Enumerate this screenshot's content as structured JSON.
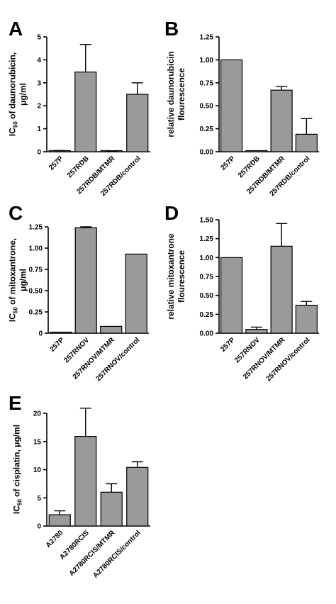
{
  "chart_data": [
    {
      "type": "bar",
      "panel_letter": "A",
      "ylabel": [
        "IC",
        "50",
        " of daunorubicin,",
        "μg/ml"
      ],
      "ylim": [
        0,
        5
      ],
      "yticks": [
        "0",
        "1",
        "2",
        "3",
        "4",
        "5"
      ],
      "categories": [
        "257P",
        "257RDB",
        "257RDB/MTMR",
        "257RDB/control"
      ],
      "values": [
        0.03,
        3.47,
        0.02,
        2.5
      ],
      "errors": [
        0.02,
        1.2,
        0.01,
        0.5
      ],
      "bar_color": "#9a9a9a"
    },
    {
      "type": "bar",
      "panel_letter": "B",
      "ylabel": [
        "relative daunorubicin",
        "flourescence"
      ],
      "ylim": [
        0,
        1.25
      ],
      "yticks": [
        "0.00",
        "0.25",
        "0.50",
        "0.75",
        "1.00",
        "1.25"
      ],
      "categories": [
        "257P",
        "257RDB",
        "257RDB/MTMR",
        "257RDB/control"
      ],
      "values": [
        1.0,
        0.0,
        0.67,
        0.19
      ],
      "errors": [
        0.0,
        0.0,
        0.04,
        0.17
      ],
      "bar_color": "#9a9a9a"
    },
    {
      "type": "bar",
      "panel_letter": "C",
      "ylabel": [
        "IC",
        "50",
        " of mitoxantrone,",
        "μg/ml"
      ],
      "ylim": [
        0,
        1.25
      ],
      "yticks": [
        "0",
        "0.25",
        "0.50",
        "0.75",
        "1.00",
        "1.25"
      ],
      "categories": [
        "257P",
        "257RNOV",
        "257RNOV/MTMR",
        "257RNOV/control"
      ],
      "values": [
        0.01,
        1.24,
        0.08,
        0.93
      ],
      "errors": [
        0.0,
        0.01,
        0.0,
        0.0
      ],
      "bar_color": "#9a9a9a"
    },
    {
      "type": "bar",
      "panel_letter": "D",
      "ylabel": [
        "relative mitoxantrone",
        "flourescence"
      ],
      "ylim": [
        0,
        1.5
      ],
      "yticks": [
        "0.00",
        "0.25",
        "0.50",
        "0.75",
        "1.00",
        "1.25",
        "1.50"
      ],
      "categories": [
        "257P",
        "257RNOV",
        "257RNOV/MTMR",
        "257RNOV/control"
      ],
      "values": [
        1.0,
        0.05,
        1.15,
        0.37
      ],
      "errors": [
        0.0,
        0.03,
        0.3,
        0.05
      ],
      "bar_color": "#9a9a9a"
    },
    {
      "type": "bar",
      "panel_letter": "E",
      "ylabel": [
        "IC",
        "50",
        " of cisplatin, μg/ml",
        ""
      ],
      "ylim": [
        0,
        20
      ],
      "yticks": [
        "0",
        "5",
        "10",
        "15",
        "20"
      ],
      "categories": [
        "A2780",
        "A2780RCIS",
        "A2780RCIS/MTMR",
        "A2780RCIS/control"
      ],
      "values": [
        2.0,
        15.9,
        6.0,
        10.4
      ],
      "errors": [
        0.7,
        5.0,
        1.5,
        1.0
      ],
      "bar_color": "#9a9a9a"
    }
  ]
}
